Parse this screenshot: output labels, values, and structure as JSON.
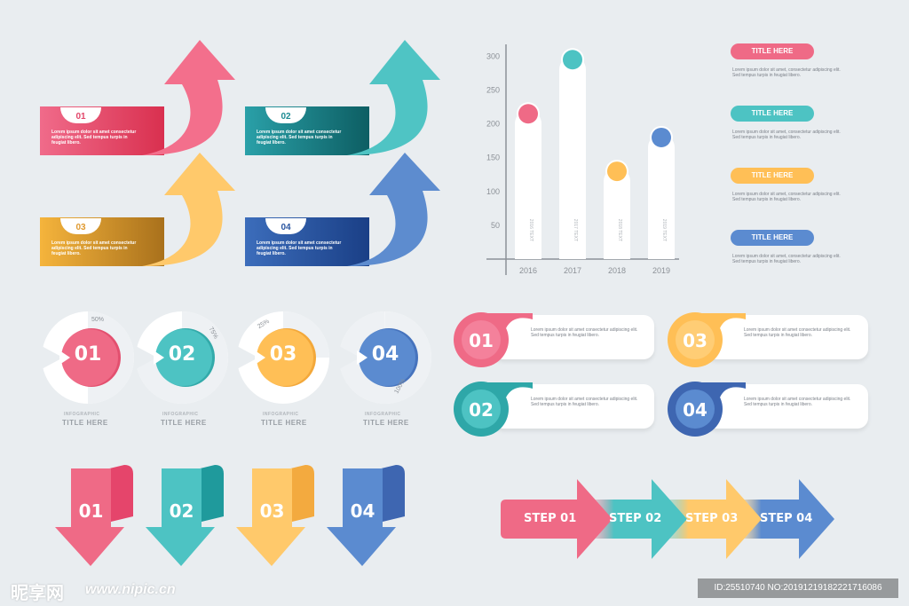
{
  "colors": {
    "pink": "#ef6a86",
    "teal": "#4dc3c3",
    "yellow": "#ffbf56",
    "blue": "#5b8bd0",
    "bg": "#e9edf0"
  },
  "arrow_banners": [
    {
      "num": "01",
      "text": "Lorem ipsum dolor sit amet consectetur adipiscing elit. Sed tempus turpis in feugiat libero."
    },
    {
      "num": "02",
      "text": "Lorem ipsum dolor sit amet consectetur adipiscing elit. Sed tempus turpis in feugiat libero."
    },
    {
      "num": "03",
      "text": "Lorem ipsum dolor sit amet consectetur adipiscing elit. Sed tempus turpis in feugiat libero."
    },
    {
      "num": "04",
      "text": "Lorem ipsum dolor sit amet consectetur adipiscing elit. Sed tempus turpis in feugiat libero."
    }
  ],
  "chart_data": {
    "type": "bar",
    "categories": [
      "2016",
      "2017",
      "2018",
      "2019"
    ],
    "values": [
      220,
      300,
      135,
      185
    ],
    "bar_labels": [
      "2016 TEXT",
      "2017 TEXT",
      "2018 TEXT",
      "2019 TEXT"
    ],
    "yticks": [
      50,
      100,
      150,
      200,
      250,
      300
    ],
    "ylim": [
      0,
      320
    ]
  },
  "side_titles": [
    {
      "label": "TITLE HERE",
      "text": "Lorem ipsum dolor sit amet, consectetur adipiscing elit. Sed tempus turpis in feugiat libero."
    },
    {
      "label": "TITLE HERE",
      "text": "Lorem ipsum dolor sit amet, consectetur adipiscing elit. Sed tempus turpis in feugiat libero."
    },
    {
      "label": "TITLE HERE",
      "text": "Lorem ipsum dolor sit amet, consectetur adipiscing elit. Sed tempus turpis in feugiat libero."
    },
    {
      "label": "TITLE HERE",
      "text": "Lorem ipsum dolor sit amet, consectetur adipiscing elit. Sed tempus turpis in feugiat libero."
    }
  ],
  "donuts": [
    {
      "num": "01",
      "percent": "50%",
      "fraction": 0.5,
      "subtitle": "INFOGRAPHIC",
      "title": "TITLE HERE"
    },
    {
      "num": "02",
      "percent": "75%",
      "fraction": 0.75,
      "subtitle": "INFOGRAPHIC",
      "title": "TITLE HERE"
    },
    {
      "num": "03",
      "percent": "25%",
      "fraction": 0.25,
      "subtitle": "INFOGRAPHIC",
      "title": "TITLE HERE"
    },
    {
      "num": "04",
      "percent": "100%",
      "fraction": 1.0,
      "subtitle": "INFOGRAPHIC",
      "title": "TITLE HERE"
    }
  ],
  "cards": [
    {
      "num": "01",
      "text": "Lorem ipsum dolor sit amet consectetur adipiscing elit. Sed tempus turpis in feugiat libero."
    },
    {
      "num": "03",
      "text": "Lorem ipsum dolor sit amet consectetur adipiscing elit. Sed tempus turpis in feugiat libero."
    },
    {
      "num": "02",
      "text": "Lorem ipsum dolor sit amet consectetur adipiscing elit. Sed tempus turpis in feugiat libero."
    },
    {
      "num": "04",
      "text": "Lorem ipsum dolor sit amet consectetur adipiscing elit. Sed tempus turpis in feugiat libero."
    }
  ],
  "down_arrows": [
    {
      "num": "01"
    },
    {
      "num": "02"
    },
    {
      "num": "03"
    },
    {
      "num": "04"
    }
  ],
  "steps": [
    {
      "label": "STEP 01"
    },
    {
      "label": "STEP 02"
    },
    {
      "label": "STEP 03"
    },
    {
      "label": "STEP 04"
    }
  ],
  "watermark": {
    "logo": "昵享网",
    "site": "www.nipic.cn",
    "id": "ID:25510740 NO:20191219182221716086"
  }
}
